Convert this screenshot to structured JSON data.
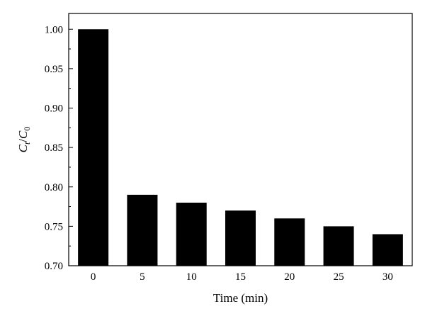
{
  "chart_data": {
    "type": "bar",
    "categories": [
      "0",
      "5",
      "10",
      "15",
      "20",
      "25",
      "30"
    ],
    "values": [
      1.0,
      0.79,
      0.78,
      0.77,
      0.76,
      0.75,
      0.74
    ],
    "title": "",
    "xlabel": "Time (min)",
    "ylabel": {
      "base": "C",
      "num_sub": "t",
      "slash": "/",
      "den_base": "C",
      "den_sub": "0"
    },
    "ylim": [
      0.7,
      1.02
    ],
    "yticks": [
      "0.70",
      "0.75",
      "0.80",
      "0.85",
      "0.90",
      "0.95",
      "1.00"
    ],
    "bar_color": "#000000",
    "grid": false,
    "legend": "none"
  }
}
